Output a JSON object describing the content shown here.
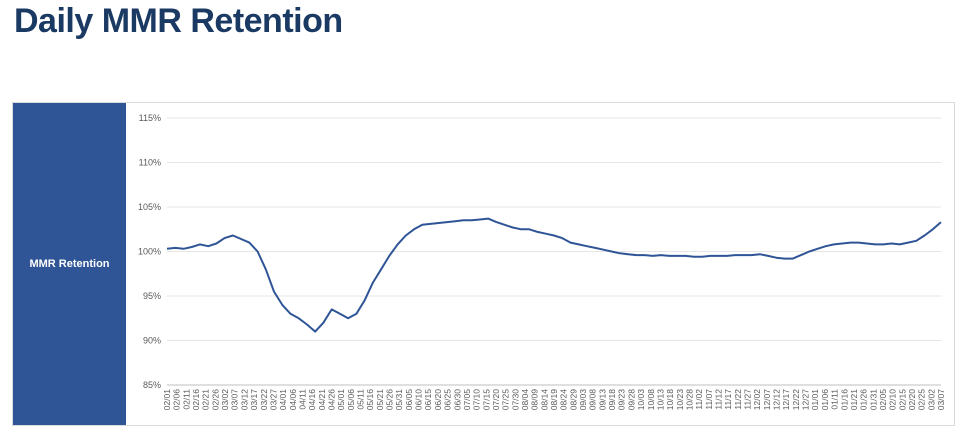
{
  "title": "Daily MMR Retention",
  "sidebar_label": "MMR Retention",
  "colors": {
    "series": "#2f5597",
    "sidebar": "#2f5597",
    "title": "#1b3a63",
    "grid": "#e6e6e6"
  },
  "chart_data": {
    "type": "line",
    "ylim": [
      85,
      115
    ],
    "yticks": [
      85,
      90,
      95,
      100,
      105,
      110,
      115
    ],
    "ytick_labels": [
      "85%",
      "90%",
      "95%",
      "100%",
      "105%",
      "110%",
      "115%"
    ],
    "grid": "horizontal",
    "xtick_labels": [
      "02/01",
      "02/06",
      "02/11",
      "02/16",
      "02/21",
      "02/26",
      "03/02",
      "03/07",
      "03/12",
      "03/17",
      "03/22",
      "03/27",
      "04/01",
      "04/06",
      "04/11",
      "04/16",
      "04/21",
      "04/26",
      "05/01",
      "05/06",
      "05/11",
      "05/16",
      "05/21",
      "05/26",
      "05/31",
      "06/05",
      "06/10",
      "06/15",
      "06/20",
      "06/25",
      "06/30",
      "07/05",
      "07/10",
      "07/15",
      "07/20",
      "07/25",
      "07/30",
      "08/04",
      "08/09",
      "08/14",
      "08/19",
      "08/24",
      "08/29",
      "09/03",
      "09/08",
      "09/13",
      "09/18",
      "09/23",
      "09/28",
      "10/03",
      "10/08",
      "10/13",
      "10/18",
      "10/23",
      "10/28",
      "11/02",
      "11/07",
      "11/12",
      "11/17",
      "11/22",
      "11/27",
      "12/02",
      "12/07",
      "12/12",
      "12/17",
      "12/22",
      "12/27",
      "01/01",
      "01/06",
      "01/11",
      "01/16",
      "01/21",
      "01/26",
      "01/31",
      "02/05",
      "02/10",
      "02/15",
      "02/20",
      "02/25",
      "03/02",
      "03/07"
    ],
    "series": [
      {
        "values": [
          100.3,
          100.4,
          100.3,
          100.5,
          100.8,
          100.6,
          100.9,
          101.5,
          101.8,
          101.4,
          101.0,
          100.0,
          98.0,
          95.5,
          94.0,
          93.0,
          92.5,
          91.8,
          91.0,
          92.0,
          93.5,
          93.0,
          92.5,
          93.0,
          94.5,
          96.5,
          98.0,
          99.5,
          100.8,
          101.8,
          102.5,
          103.0,
          103.1,
          103.2,
          103.3,
          103.4,
          103.5,
          103.5,
          103.6,
          103.7,
          103.3,
          103.0,
          102.7,
          102.5,
          102.5,
          102.2,
          102.0,
          101.8,
          101.5,
          101.0,
          100.8,
          100.6,
          100.4,
          100.2,
          100.0,
          99.8,
          99.7,
          99.6,
          99.6,
          99.5,
          99.6,
          99.5,
          99.5,
          99.5,
          99.4,
          99.4,
          99.5,
          99.5,
          99.5,
          99.6,
          99.6,
          99.6,
          99.7,
          99.5,
          99.3,
          99.2,
          99.2,
          99.6,
          100.0,
          100.3,
          100.6,
          100.8,
          100.9,
          101.0,
          101.0,
          100.9,
          100.8,
          100.8,
          100.9,
          100.8,
          101.0,
          101.2,
          101.8,
          102.5,
          103.3
        ]
      }
    ]
  }
}
